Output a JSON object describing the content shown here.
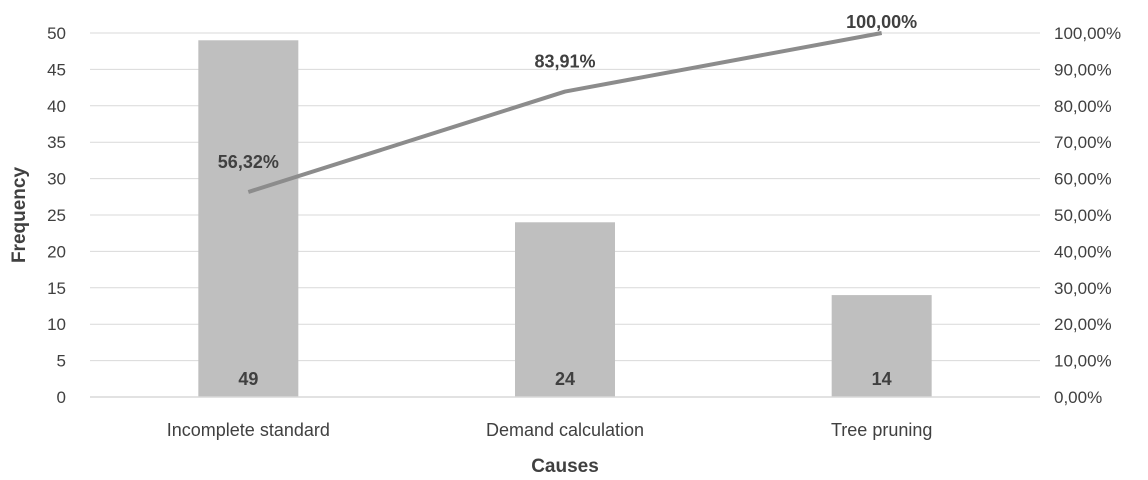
{
  "chart_data": {
    "type": "bar",
    "categories": [
      "Incomplete standard",
      "Demand calculation",
      "Tree pruning"
    ],
    "series": [
      {
        "type": "bar",
        "values": [
          49,
          24,
          14
        ],
        "color": "#bfbfbf",
        "axis": "left"
      },
      {
        "type": "line",
        "values": [
          56.32,
          83.91,
          100.0
        ],
        "color": "#8c8c8c",
        "axis": "right"
      }
    ],
    "bar_labels": [
      "49",
      "24",
      "14"
    ],
    "line_labels": [
      "56,32%",
      "83,91%",
      "100,00%"
    ],
    "xlabel": "Causes",
    "ylabel": "Frequency",
    "ylim": [
      0,
      50
    ],
    "y_ticks": [
      "0",
      "5",
      "10",
      "15",
      "20",
      "25",
      "30",
      "35",
      "40",
      "45",
      "50"
    ],
    "y2lim": [
      0,
      100
    ],
    "y2_ticks": [
      "0,00%",
      "10,00%",
      "20,00%",
      "30,00%",
      "40,00%",
      "50,00%",
      "60,00%",
      "70,00%",
      "80,00%",
      "90,00%",
      "100,00%"
    ],
    "grid": true,
    "legend": "none"
  }
}
